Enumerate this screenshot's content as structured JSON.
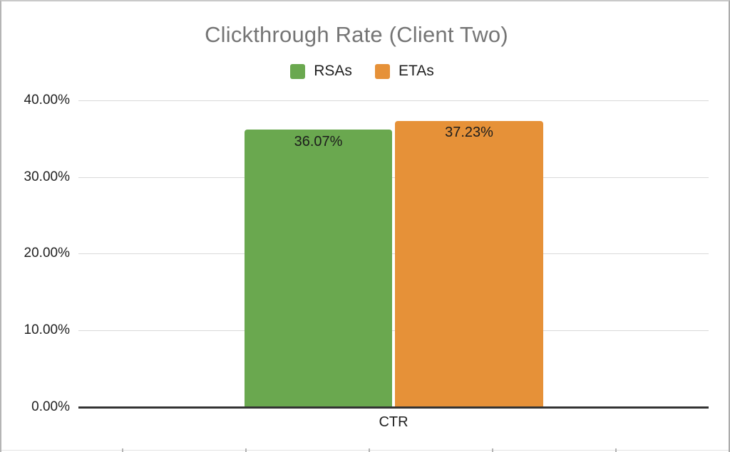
{
  "chart": {
    "title": "Clickthrough Rate (Client Two)",
    "title_color": "#757575",
    "legend": [
      {
        "label": "RSAs",
        "color": "#6aa84f"
      },
      {
        "label": "ETAs",
        "color": "#e69138"
      }
    ],
    "y_axis": {
      "ticks": [
        "40.00%",
        "30.00%",
        "20.00%",
        "10.00%",
        "0.00%"
      ]
    },
    "x_axis": {
      "category": "CTR"
    },
    "bars": [
      {
        "name": "RSAs",
        "value_label": "36.07%",
        "color": "#6aa84f"
      },
      {
        "name": "ETAs",
        "value_label": "37.23%",
        "color": "#e69138"
      }
    ],
    "gridline_color": "#d9d9d9",
    "baseline_color": "#333333"
  },
  "chart_data": {
    "type": "bar",
    "title": "Clickthrough Rate (Client Two)",
    "categories": [
      "CTR"
    ],
    "series": [
      {
        "name": "RSAs",
        "values": [
          36.07
        ],
        "color": "#6aa84f"
      },
      {
        "name": "ETAs",
        "values": [
          37.23
        ],
        "color": "#e69138"
      }
    ],
    "value_labels": [
      "36.07%",
      "37.23%"
    ],
    "xlabel": "",
    "ylabel": "",
    "ylim": [
      0,
      40
    ],
    "ytick_format": "percent_2dp",
    "yticks": [
      0,
      10,
      20,
      30,
      40
    ],
    "grid": true,
    "legend_position": "top"
  }
}
